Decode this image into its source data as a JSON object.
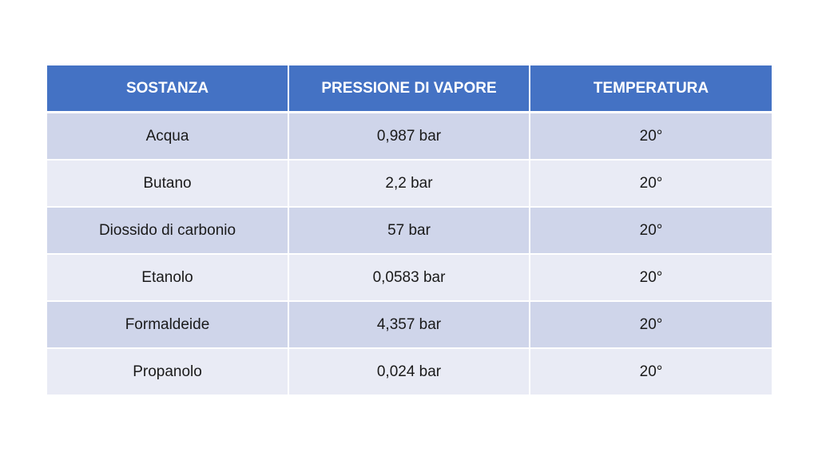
{
  "table": {
    "headers": [
      "SOSTANZA",
      "PRESSIONE DI VAPORE",
      "TEMPERATURA"
    ],
    "rows": [
      [
        "Acqua",
        "0,987 bar",
        "20°"
      ],
      [
        "Butano",
        "2,2 bar",
        "20°"
      ],
      [
        "Diossido di carbonio",
        "57 bar",
        "20°"
      ],
      [
        "Etanolo",
        "0,0583 bar",
        "20°"
      ],
      [
        "Formaldeide",
        "4,357 bar",
        "20°"
      ],
      [
        "Propanolo",
        "0,024 bar",
        "20°"
      ]
    ]
  },
  "colors": {
    "header_bg": "#4472c4",
    "row_odd_bg": "#cfd5ea",
    "row_even_bg": "#e9ebf5"
  }
}
